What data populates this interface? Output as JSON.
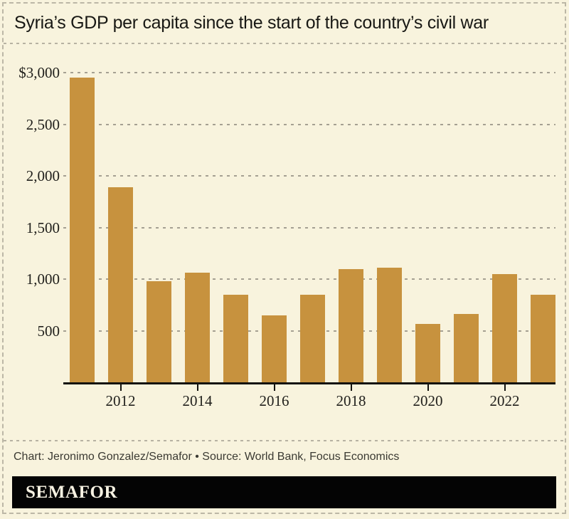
{
  "page": {
    "background": "#f8f3dd",
    "border_color": "#bcb7a6"
  },
  "header": {
    "title": "Syria’s GDP per capita since the start of the country’s civil war"
  },
  "chart_data": {
    "type": "bar",
    "title": "Syria’s GDP per capita since the start of the country’s civil war",
    "unit": "USD",
    "categories": [
      "2011",
      "2012",
      "2013",
      "2014",
      "2015",
      "2016",
      "2017",
      "2018",
      "2019",
      "2020",
      "2021",
      "2022",
      "2023"
    ],
    "values": [
      2950,
      1890,
      980,
      1060,
      845,
      650,
      850,
      1100,
      1110,
      565,
      660,
      1050,
      845
    ],
    "x_tick_labels": [
      "2012",
      "2014",
      "2016",
      "2018",
      "2020",
      "2022"
    ],
    "y_ticks": [
      {
        "label": "$3,000",
        "value": 3000
      },
      {
        "label": "2,500",
        "value": 2500
      },
      {
        "label": "2,000",
        "value": 2000
      },
      {
        "label": "1,500",
        "value": 1500
      },
      {
        "label": "1,000",
        "value": 1000
      },
      {
        "label": "500",
        "value": 500
      }
    ],
    "ylim": [
      0,
      3150
    ],
    "xlabel": "",
    "ylabel": "",
    "bar_color": "#c7923e",
    "grid": "horizontal-dashed",
    "legend": "none"
  },
  "footer": {
    "credit": "Chart: Jeronimo Gonzalez/Semafor • Source: World Bank, Focus Economics",
    "logo_text": "SEMAFOR",
    "logo_bg": "#040404"
  }
}
